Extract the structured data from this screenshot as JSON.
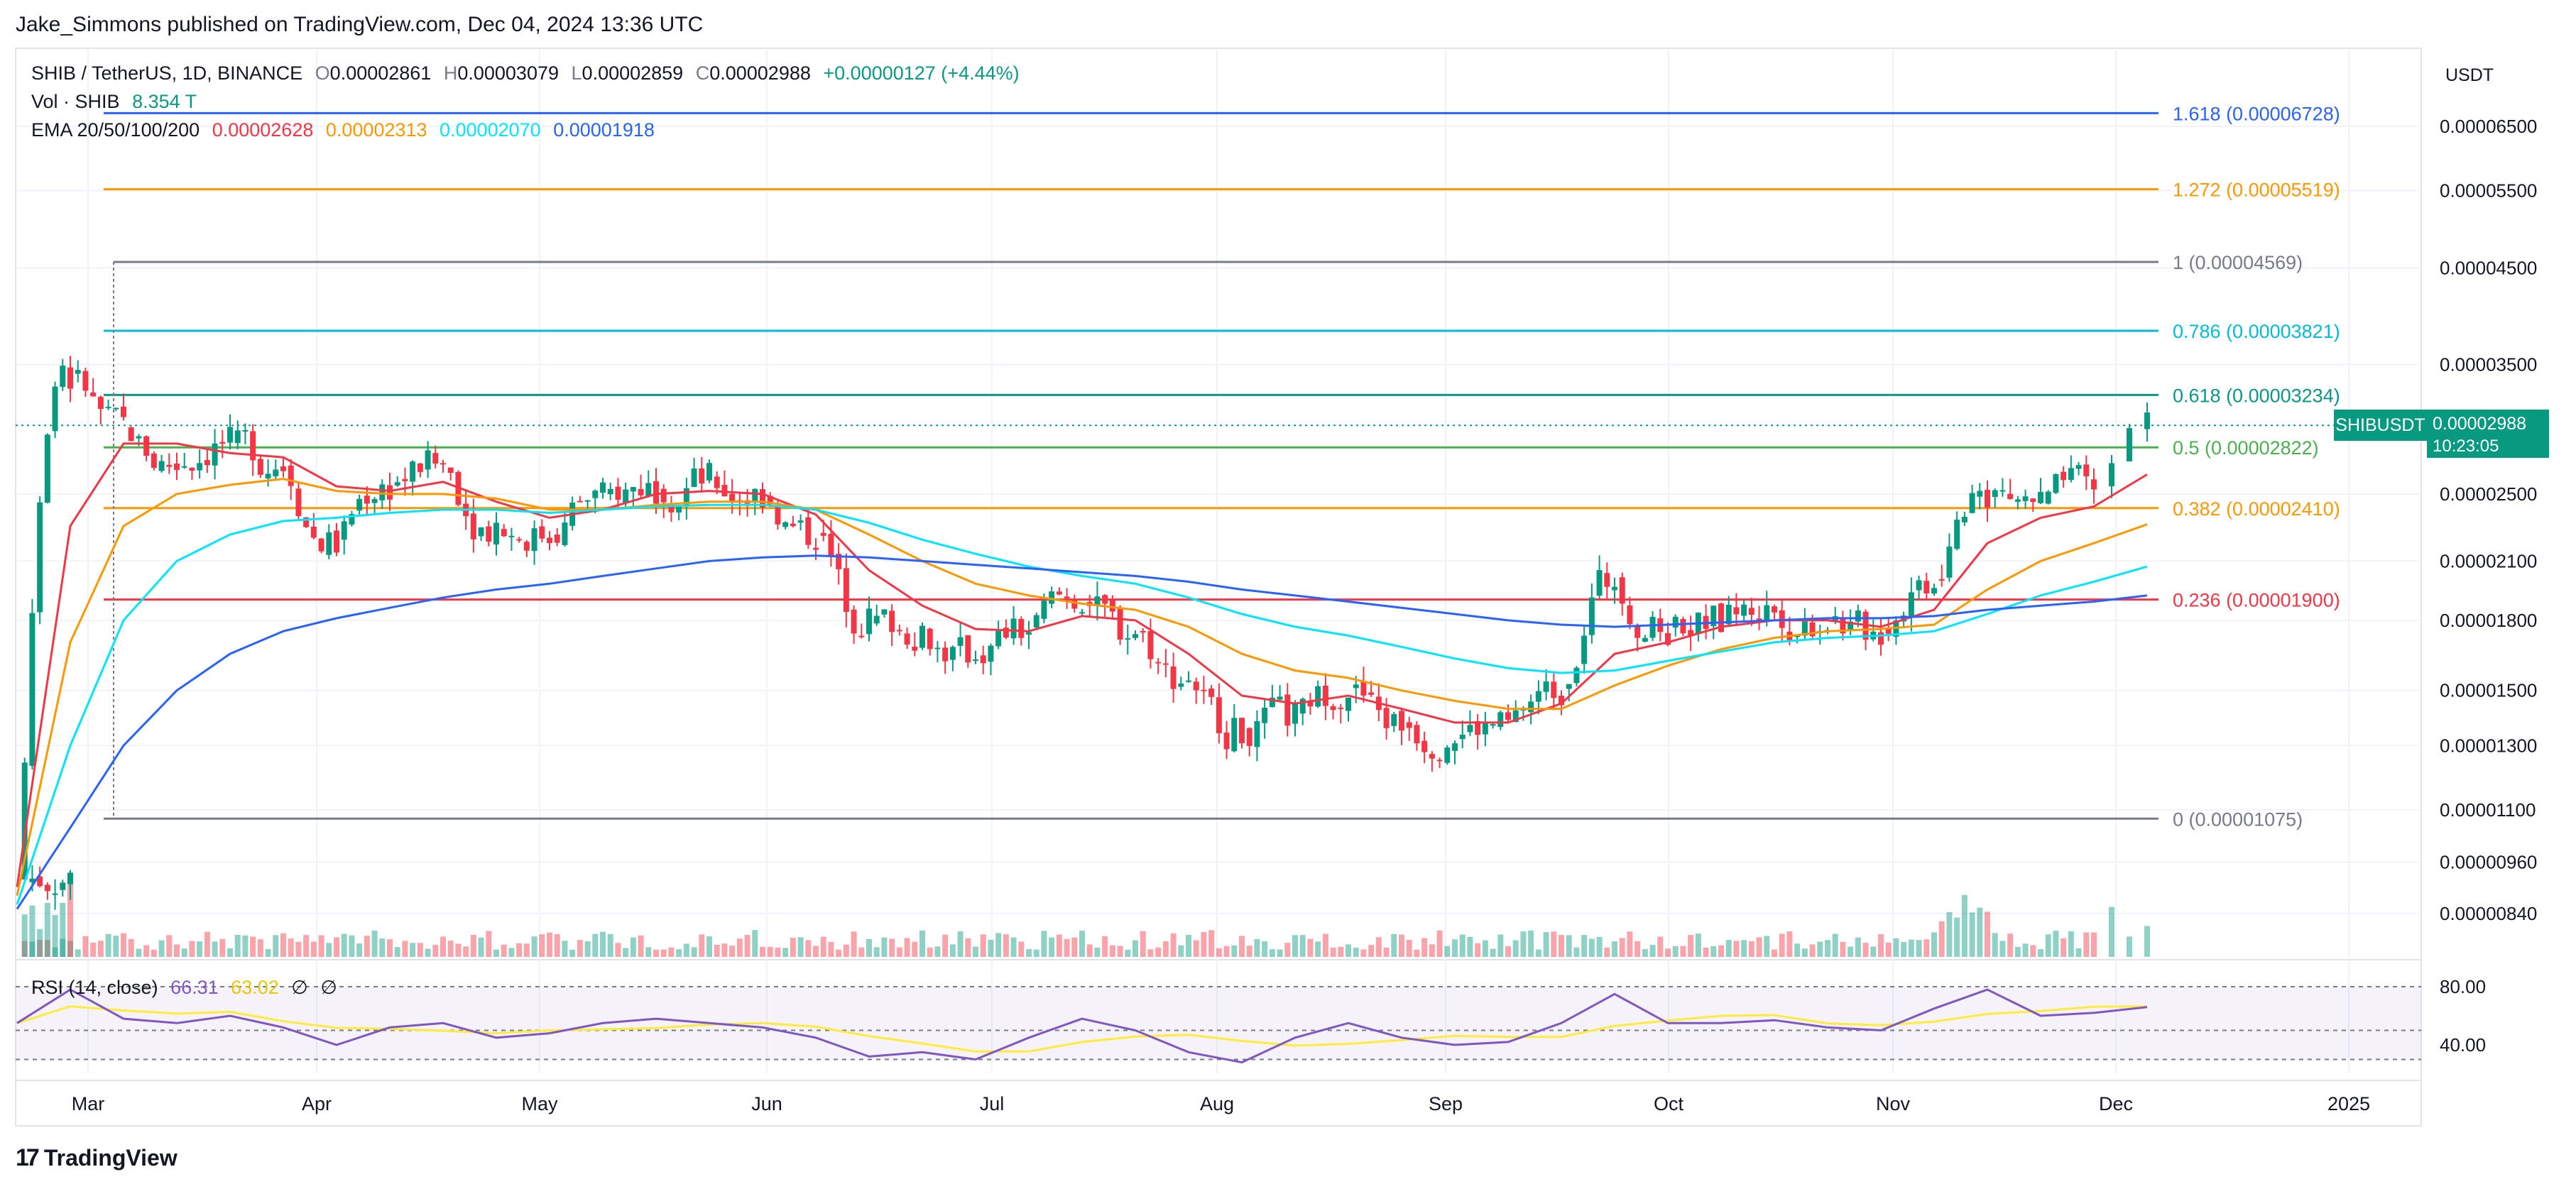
{
  "header": {
    "caption": "Jake_Simmons published on TradingView.com, Dec 04, 2024 13:36 UTC"
  },
  "legend": {
    "symbol": "SHIB / TetherUS, 1D, BINANCE",
    "o_label": "O",
    "o_value": "0.00002861",
    "h_label": "H",
    "h_value": "0.00003079",
    "l_label": "L",
    "l_value": "0.00002859",
    "c_label": "C",
    "c_value": "0.00002988",
    "change": "+0.00000127 (+4.44%)",
    "vol_label": "Vol · SHIB",
    "vol_value": "8.354 T",
    "ema_label": "EMA 20/50/100/200",
    "ema20": "0.00002628",
    "ema50": "0.00002313",
    "ema100": "0.00002070",
    "ema200": "0.00001918"
  },
  "rsi": {
    "label": "RSI (14, close)",
    "value1": "66.31",
    "value2": "63.02",
    "na1": "∅",
    "na2": "∅",
    "levels": [
      "80.00",
      "40.00"
    ]
  },
  "price_axis": {
    "currency": "USDT",
    "ticks": [
      "0.00006500",
      "0.00005500",
      "0.00004500",
      "0.00003500",
      "0.00002500",
      "0.00002100",
      "0.00001800",
      "0.00001500",
      "0.00001300",
      "0.00001100",
      "0.00000960",
      "0.00000840"
    ]
  },
  "last_price": {
    "symbol": "SHIBUSDT",
    "price": "0.00002988",
    "countdown": "10:23:05"
  },
  "time_axis": {
    "labels": [
      "Mar",
      "Apr",
      "May",
      "Jun",
      "Jul",
      "Aug",
      "Sep",
      "Oct",
      "Nov",
      "Dec",
      "2025"
    ]
  },
  "footer": {
    "brand": "TradingView",
    "logo_icon": "tradingview-logo-icon"
  },
  "colors": {
    "up": "#089981",
    "down": "#f23645",
    "ema20": "#f23645",
    "ema50": "#ff9800",
    "ema100": "#00e5ff",
    "ema200": "#2962ff",
    "rsi": "#7e57c2",
    "rsi_ma": "#ffeb3b"
  },
  "chart_data": {
    "type": "line",
    "title": "SHIB / TetherUS, 1D, BINANCE",
    "y_scale": "log",
    "x": [
      "2024-02-26",
      "2024-03-04",
      "2024-03-11",
      "2024-03-18",
      "2024-03-25",
      "2024-04-01",
      "2024-04-08",
      "2024-04-15",
      "2024-04-22",
      "2024-04-29",
      "2024-05-06",
      "2024-05-13",
      "2024-05-20",
      "2024-05-27",
      "2024-06-03",
      "2024-06-10",
      "2024-06-17",
      "2024-06-24",
      "2024-07-01",
      "2024-07-08",
      "2024-07-15",
      "2024-07-22",
      "2024-07-29",
      "2024-08-05",
      "2024-08-12",
      "2024-08-19",
      "2024-08-26",
      "2024-09-02",
      "2024-09-09",
      "2024-09-16",
      "2024-09-23",
      "2024-09-30",
      "2024-10-07",
      "2024-10-14",
      "2024-10-21",
      "2024-10-28",
      "2024-11-04",
      "2024-11-11",
      "2024-11-18",
      "2024-11-25",
      "2024-12-02"
    ],
    "series": [
      {
        "name": "SHIBUSDT",
        "values": [
          9.2e-06,
          3.4e-05,
          3e-05,
          2.7e-05,
          2.85e-05,
          2.7e-05,
          2.2e-05,
          2.55e-05,
          2.7e-05,
          2.3e-05,
          2.25e-05,
          2.48e-05,
          2.55e-05,
          2.6e-05,
          2.5e-05,
          2.25e-05,
          1.8e-05,
          1.75e-05,
          1.65e-05,
          1.75e-05,
          1.9e-05,
          1.75e-05,
          1.55e-05,
          1.35e-05,
          1.4e-05,
          1.5e-05,
          1.38e-05,
          1.33e-05,
          1.37e-05,
          1.5e-05,
          2e-05,
          1.75e-05,
          1.8e-05,
          1.85e-05,
          1.8e-05,
          1.75e-05,
          2e-05,
          2.5e-05,
          2.45e-05,
          2.55e-05,
          2.99e-05
        ]
      },
      {
        "name": "EMA 20",
        "values": [
          9e-06,
          2.3e-05,
          2.85e-05,
          2.85e-05,
          2.78e-05,
          2.75e-05,
          2.55e-05,
          2.52e-05,
          2.58e-05,
          2.45e-05,
          2.35e-05,
          2.4e-05,
          2.5e-05,
          2.52e-05,
          2.5e-05,
          2.37e-05,
          2.05e-05,
          1.87e-05,
          1.76e-05,
          1.75e-05,
          1.82e-05,
          1.8e-05,
          1.65e-05,
          1.48e-05,
          1.45e-05,
          1.48e-05,
          1.43e-05,
          1.38e-05,
          1.38e-05,
          1.45e-05,
          1.65e-05,
          1.7e-05,
          1.77e-05,
          1.8e-05,
          1.8e-05,
          1.77e-05,
          1.85e-05,
          2.2e-05,
          2.35e-05,
          2.42e-05,
          2.63e-05
        ]
      },
      {
        "name": "EMA 50",
        "values": [
          8.8e-06,
          1.7e-05,
          2.3e-05,
          2.5e-05,
          2.56e-05,
          2.6e-05,
          2.52e-05,
          2.5e-05,
          2.5e-05,
          2.47e-05,
          2.4e-05,
          2.4e-05,
          2.43e-05,
          2.45e-05,
          2.45e-05,
          2.4e-05,
          2.25e-05,
          2.1e-05,
          1.98e-05,
          1.92e-05,
          1.88e-05,
          1.85e-05,
          1.77e-05,
          1.65e-05,
          1.58e-05,
          1.55e-05,
          1.5e-05,
          1.46e-05,
          1.43e-05,
          1.43e-05,
          1.52e-05,
          1.6e-05,
          1.67e-05,
          1.72e-05,
          1.75e-05,
          1.76e-05,
          1.78e-05,
          1.95e-05,
          2.1e-05,
          2.2e-05,
          2.31e-05
        ]
      },
      {
        "name": "EMA 100",
        "values": [
          8.6e-06,
          1.3e-05,
          1.8e-05,
          2.1e-05,
          2.25e-05,
          2.33e-05,
          2.35e-05,
          2.38e-05,
          2.4e-05,
          2.4e-05,
          2.38e-05,
          2.4e-05,
          2.42e-05,
          2.43e-05,
          2.43e-05,
          2.4e-05,
          2.32e-05,
          2.22e-05,
          2.14e-05,
          2.07e-05,
          2.02e-05,
          1.98e-05,
          1.91e-05,
          1.83e-05,
          1.77e-05,
          1.73e-05,
          1.68e-05,
          1.63e-05,
          1.59e-05,
          1.57e-05,
          1.58e-05,
          1.62e-05,
          1.66e-05,
          1.7e-05,
          1.72e-05,
          1.73e-05,
          1.75e-05,
          1.83e-05,
          1.92e-05,
          1.99e-05,
          2.07e-05
        ]
      },
      {
        "name": "EMA 200",
        "values": [
          8.5e-06,
          1.05e-05,
          1.3e-05,
          1.5e-05,
          1.65e-05,
          1.75e-05,
          1.81e-05,
          1.86e-05,
          1.91e-05,
          1.95e-05,
          1.98e-05,
          2.02e-05,
          2.06e-05,
          2.1e-05,
          2.12e-05,
          2.13e-05,
          2.12e-05,
          2.1e-05,
          2.08e-05,
          2.06e-05,
          2.04e-05,
          2.02e-05,
          1.99e-05,
          1.95e-05,
          1.92e-05,
          1.89e-05,
          1.86e-05,
          1.83e-05,
          1.8e-05,
          1.78e-05,
          1.77e-05,
          1.78e-05,
          1.79e-05,
          1.8e-05,
          1.81e-05,
          1.81e-05,
          1.82e-05,
          1.85e-05,
          1.87e-05,
          1.89e-05,
          1.92e-05
        ]
      }
    ],
    "fib_levels": [
      {
        "label": "1.618 (0.00006728)",
        "ratio": 1.618,
        "value": 6.728e-05,
        "color": "#2962ff"
      },
      {
        "label": "1.272 (0.00005519)",
        "ratio": 1.272,
        "value": 5.519e-05,
        "color": "#ff9800"
      },
      {
        "label": "1 (0.00004569)",
        "ratio": 1,
        "value": 4.569e-05,
        "color": "#787b86"
      },
      {
        "label": "0.786 (0.00003821)",
        "ratio": 0.786,
        "value": 3.821e-05,
        "color": "#00bcd4"
      },
      {
        "label": "0.618 (0.00003234)",
        "ratio": 0.618,
        "value": 3.234e-05,
        "color": "#089981"
      },
      {
        "label": "0.5 (0.00002822)",
        "ratio": 0.5,
        "value": 2.822e-05,
        "color": "#4caf50"
      },
      {
        "label": "0.382 (0.00002410)",
        "ratio": 0.382,
        "value": 2.41e-05,
        "color": "#ff9800"
      },
      {
        "label": "0.236 (0.00001900)",
        "ratio": 0.236,
        "value": 1.9e-05,
        "color": "#f23645"
      },
      {
        "label": "0 (0.00001075)",
        "ratio": 0,
        "value": 1.075e-05,
        "color": "#787b86"
      }
    ],
    "rsi_values": [
      55,
      78,
      58,
      55,
      60,
      52,
      40,
      52,
      55,
      45,
      48,
      55,
      58,
      55,
      52,
      45,
      32,
      35,
      30,
      45,
      58,
      50,
      35,
      28,
      45,
      55,
      45,
      40,
      42,
      55,
      75,
      55,
      55,
      57,
      52,
      50,
      65,
      78,
      60,
      62,
      66
    ]
  }
}
